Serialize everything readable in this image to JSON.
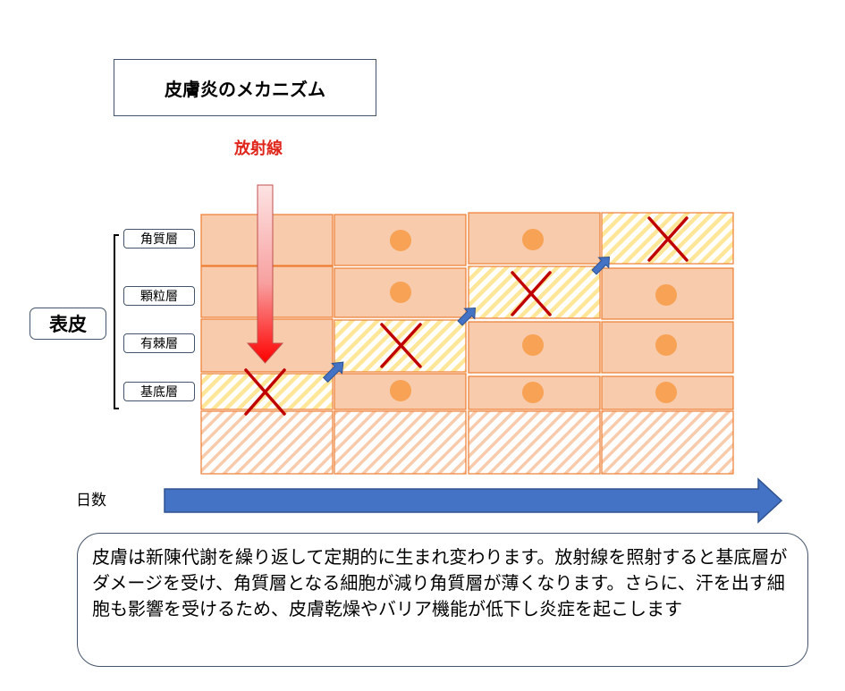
{
  "title": "皮膚炎のメカニズム",
  "radiation_label": "放射線",
  "epidermis_label": "表皮",
  "layers": [
    "角質層",
    "顆粒層",
    "有棘層",
    "基底層"
  ],
  "axis_label": "日数",
  "description": "皮膚は新陳代謝を繰り返して定期的に生まれ変わります。放射線を照射すると基底層がダメージを受け、角質層となる細胞が減り角質層が薄くなります。さらに、汗を出す細胞も影響を受けるため、皮膚乾燥やバリア機能が低下し炎症を起こします",
  "colors": {
    "cell_fill": "#f8cbad",
    "cell_border": "#ed7d31",
    "nucleus": "#f7a254",
    "damaged_stripe": "#ffe699",
    "cross": "#c00000",
    "progress_arrow": "#4472c4",
    "radiation_arrow_top": "#fde3e3",
    "radiation_arrow_bottom": "#ff0000"
  }
}
